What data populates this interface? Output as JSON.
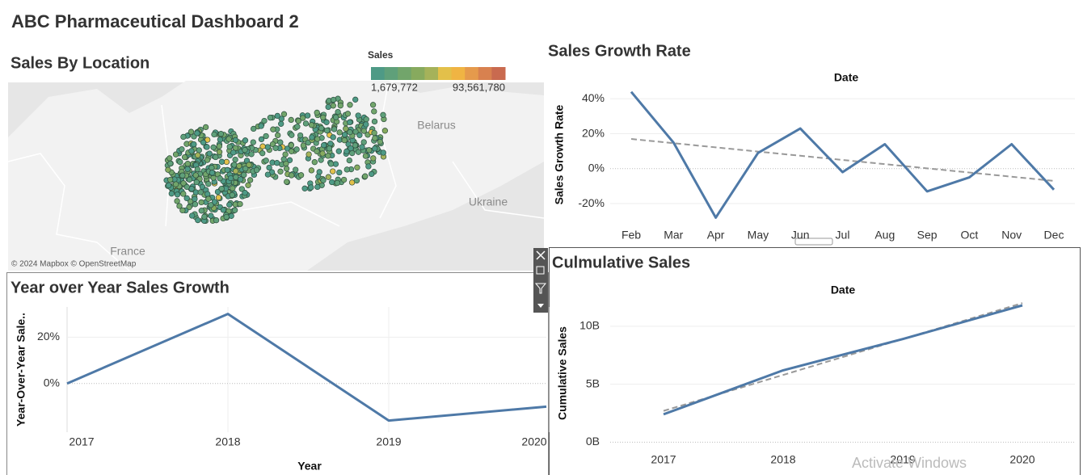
{
  "title": "ABC Pharmaceutical Dashboard 2",
  "map": {
    "title": "Sales By Location",
    "legend_title": "Sales",
    "legend_colors": [
      "#4e9a86",
      "#5fa07a",
      "#72a56b",
      "#87aa5e",
      "#a5b25a",
      "#e3c04a",
      "#f0b443",
      "#e59a4c",
      "#d8814f",
      "#c96a4f"
    ],
    "legend_ticks": [
      {
        "value": 1679772,
        "label": "1,679,772"
      },
      {
        "value": 93561780,
        "label": "93,561,780"
      }
    ],
    "labels": [
      "Belarus",
      "Ukraine",
      "France"
    ],
    "attribution": "© 2024 Mapbox © OpenStreetMap"
  },
  "chart_data": [
    {
      "type": "line",
      "title": "Sales Growth Rate",
      "xlabel": "Date",
      "ylabel": "Sales Growth Rate",
      "categories": [
        "Feb",
        "Mar",
        "Apr",
        "May",
        "Jun",
        "Jul",
        "Aug",
        "Sep",
        "Oct",
        "Nov",
        "Dec"
      ],
      "values": [
        44,
        15,
        -28,
        9,
        23,
        -2,
        14,
        -13,
        -5,
        14,
        -12
      ],
      "color": "#4e79a7",
      "ylim": [
        -32,
        48
      ],
      "yticks": [
        {
          "value": 40,
          "label": "40%"
        },
        {
          "value": 20,
          "label": "20%"
        },
        {
          "value": 0,
          "label": "0%"
        },
        {
          "value": -20,
          "label": "-20%"
        }
      ],
      "trend_line": {
        "start": 17,
        "end": -7,
        "color": "#999999"
      },
      "grid": true
    },
    {
      "type": "line",
      "title": "Year over Year Sales Growth",
      "xlabel": "Year",
      "ylabel": "Year-Over-Year Sale..",
      "categories": [
        "2017",
        "2018",
        "2019",
        "2020"
      ],
      "values": [
        0,
        30,
        -16,
        -10
      ],
      "color": "#4e79a7",
      "ylim": [
        -21,
        33
      ],
      "yticks": [
        {
          "value": 20,
          "label": "20%"
        },
        {
          "value": 0,
          "label": "0%"
        }
      ],
      "grid": true
    },
    {
      "type": "line",
      "title": "Culmulative Sales",
      "xlabel": "Date",
      "ylabel": "Cumulative Sales",
      "categories": [
        "2017",
        "2018",
        "2019",
        "2020"
      ],
      "values": [
        2400000000,
        6200000000,
        8900000000,
        11800000000
      ],
      "color": "#4e79a7",
      "ylim": [
        -600000000,
        12500000000
      ],
      "yticks": [
        {
          "value": 10000000000,
          "label": "10B"
        },
        {
          "value": 5000000000,
          "label": "5B"
        },
        {
          "value": 0,
          "label": "0B"
        }
      ],
      "trend_line": {
        "start": 2700000000,
        "end": 12000000000,
        "color": "#999999"
      },
      "grid": true
    }
  ],
  "watermark": "Activate Windows"
}
